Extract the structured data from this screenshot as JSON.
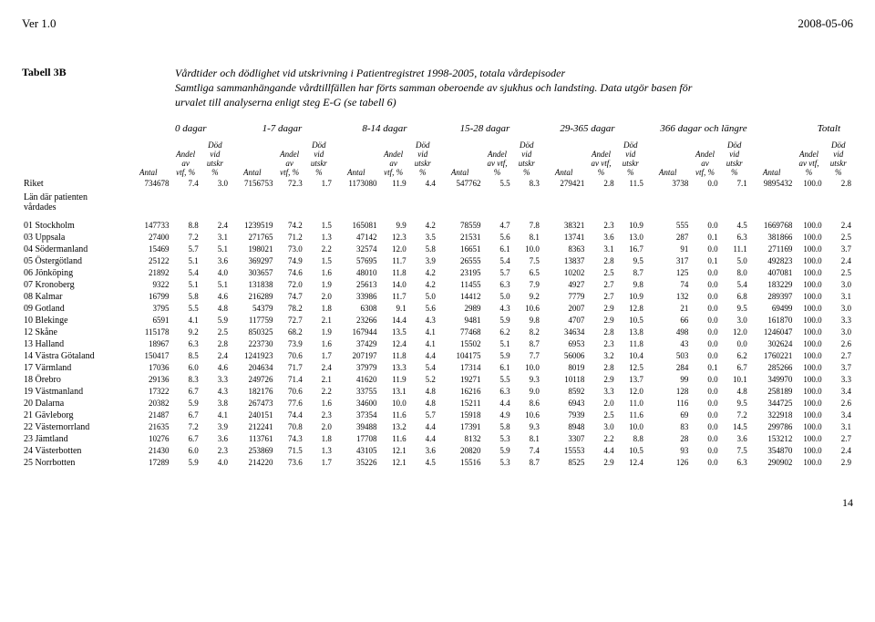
{
  "header": {
    "ver": "Ver 1.0",
    "date": "2008-05-06"
  },
  "tabell_label": "Tabell 3B",
  "title_lines": [
    "Vårdtider och dödlighet vid utskrivning i Patientregistret 1998-2005, totala vårdepisoder",
    "Samtliga sammanhängande vårdtillfällen har förts samman oberoende av sjukhus och landsting. Data utgör basen för",
    "urvalet till analyserna enligt steg E-G (se tabell 6)"
  ],
  "bucket_labels": [
    "0 dagar",
    "1-7 dagar",
    "8-14 dagar",
    "15-28 dagar",
    "29-365 dagar",
    "366 dagar och längre",
    "Totalt"
  ],
  "col_header": {
    "antal": "Antal",
    "andel": "Andel\nav\nvtf, %",
    "andel_vtf": "Andel\nav vtf,\n%",
    "dod": "Död\nvid\nutskr\n%"
  },
  "riket_label": "Riket",
  "lan_header": "Län där patienten\nvårdades",
  "pagenum": "14",
  "riket": [
    "734678",
    "7.4",
    "3.0",
    "7156753",
    "72.3",
    "1.7",
    "1173080",
    "11.9",
    "4.4",
    "547762",
    "5.5",
    "8.3",
    "279421",
    "2.8",
    "11.5",
    "3738",
    "0.0",
    "7.1",
    "9895432",
    "100.0",
    "2.8"
  ],
  "regions": [
    {
      "label": "01 Stockholm",
      "v": [
        "147733",
        "8.8",
        "2.4",
        "1239519",
        "74.2",
        "1.5",
        "165081",
        "9.9",
        "4.2",
        "78559",
        "4.7",
        "7.8",
        "38321",
        "2.3",
        "10.9",
        "555",
        "0.0",
        "4.5",
        "1669768",
        "100.0",
        "2.4"
      ]
    },
    {
      "label": "03 Uppsala",
      "v": [
        "27400",
        "7.2",
        "3.1",
        "271765",
        "71.2",
        "1.3",
        "47142",
        "12.3",
        "3.5",
        "21531",
        "5.6",
        "8.1",
        "13741",
        "3.6",
        "13.0",
        "287",
        "0.1",
        "6.3",
        "381866",
        "100.0",
        "2.5"
      ]
    },
    {
      "label": "04 Södermanland",
      "v": [
        "15469",
        "5.7",
        "5.1",
        "198021",
        "73.0",
        "2.2",
        "32574",
        "12.0",
        "5.8",
        "16651",
        "6.1",
        "10.0",
        "8363",
        "3.1",
        "16.7",
        "91",
        "0.0",
        "11.1",
        "271169",
        "100.0",
        "3.7"
      ]
    },
    {
      "label": "05 Östergötland",
      "v": [
        "25122",
        "5.1",
        "3.6",
        "369297",
        "74.9",
        "1.5",
        "57695",
        "11.7",
        "3.9",
        "26555",
        "5.4",
        "7.5",
        "13837",
        "2.8",
        "9.5",
        "317",
        "0.1",
        "5.0",
        "492823",
        "100.0",
        "2.4"
      ]
    },
    {
      "label": "06 Jönköping",
      "v": [
        "21892",
        "5.4",
        "4.0",
        "303657",
        "74.6",
        "1.6",
        "48010",
        "11.8",
        "4.2",
        "23195",
        "5.7",
        "6.5",
        "10202",
        "2.5",
        "8.7",
        "125",
        "0.0",
        "8.0",
        "407081",
        "100.0",
        "2.5"
      ]
    },
    {
      "label": "07 Kronoberg",
      "v": [
        "9322",
        "5.1",
        "5.1",
        "131838",
        "72.0",
        "1.9",
        "25613",
        "14.0",
        "4.2",
        "11455",
        "6.3",
        "7.9",
        "4927",
        "2.7",
        "9.8",
        "74",
        "0.0",
        "5.4",
        "183229",
        "100.0",
        "3.0"
      ]
    },
    {
      "label": "08 Kalmar",
      "v": [
        "16799",
        "5.8",
        "4.6",
        "216289",
        "74.7",
        "2.0",
        "33986",
        "11.7",
        "5.0",
        "14412",
        "5.0",
        "9.2",
        "7779",
        "2.7",
        "10.9",
        "132",
        "0.0",
        "6.8",
        "289397",
        "100.0",
        "3.1"
      ]
    },
    {
      "label": "09 Gotland",
      "v": [
        "3795",
        "5.5",
        "4.8",
        "54379",
        "78.2",
        "1.8",
        "6308",
        "9.1",
        "5.6",
        "2989",
        "4.3",
        "10.6",
        "2007",
        "2.9",
        "12.8",
        "21",
        "0.0",
        "9.5",
        "69499",
        "100.0",
        "3.0"
      ]
    },
    {
      "label": "10 Blekinge",
      "v": [
        "6591",
        "4.1",
        "5.9",
        "117759",
        "72.7",
        "2.1",
        "23266",
        "14.4",
        "4.3",
        "9481",
        "5.9",
        "9.8",
        "4707",
        "2.9",
        "10.5",
        "66",
        "0.0",
        "3.0",
        "161870",
        "100.0",
        "3.3"
      ]
    },
    {
      "label": "12 Skåne",
      "v": [
        "115178",
        "9.2",
        "2.5",
        "850325",
        "68.2",
        "1.9",
        "167944",
        "13.5",
        "4.1",
        "77468",
        "6.2",
        "8.2",
        "34634",
        "2.8",
        "13.8",
        "498",
        "0.0",
        "12.0",
        "1246047",
        "100.0",
        "3.0"
      ]
    },
    {
      "label": "13 Halland",
      "v": [
        "18967",
        "6.3",
        "2.8",
        "223730",
        "73.9",
        "1.6",
        "37429",
        "12.4",
        "4.1",
        "15502",
        "5.1",
        "8.7",
        "6953",
        "2.3",
        "11.8",
        "43",
        "0.0",
        "0.0",
        "302624",
        "100.0",
        "2.6"
      ]
    },
    {
      "label": "14 Västra Götaland",
      "v": [
        "150417",
        "8.5",
        "2.4",
        "1241923",
        "70.6",
        "1.7",
        "207197",
        "11.8",
        "4.4",
        "104175",
        "5.9",
        "7.7",
        "56006",
        "3.2",
        "10.4",
        "503",
        "0.0",
        "6.2",
        "1760221",
        "100.0",
        "2.7"
      ]
    },
    {
      "label": "17 Värmland",
      "v": [
        "17036",
        "6.0",
        "4.6",
        "204634",
        "71.7",
        "2.4",
        "37979",
        "13.3",
        "5.4",
        "17314",
        "6.1",
        "10.0",
        "8019",
        "2.8",
        "12.5",
        "284",
        "0.1",
        "6.7",
        "285266",
        "100.0",
        "3.7"
      ]
    },
    {
      "label": "18 Örebro",
      "v": [
        "29136",
        "8.3",
        "3.3",
        "249726",
        "71.4",
        "2.1",
        "41620",
        "11.9",
        "5.2",
        "19271",
        "5.5",
        "9.3",
        "10118",
        "2.9",
        "13.7",
        "99",
        "0.0",
        "10.1",
        "349970",
        "100.0",
        "3.3"
      ]
    },
    {
      "label": "19 Västmanland",
      "v": [
        "17322",
        "6.7",
        "4.3",
        "182176",
        "70.6",
        "2.2",
        "33755",
        "13.1",
        "4.8",
        "16216",
        "6.3",
        "9.0",
        "8592",
        "3.3",
        "12.0",
        "128",
        "0.0",
        "4.8",
        "258189",
        "100.0",
        "3.4"
      ]
    },
    {
      "label": "20 Dalarna",
      "v": [
        "20382",
        "5.9",
        "3.8",
        "267473",
        "77.6",
        "1.6",
        "34600",
        "10.0",
        "4.8",
        "15211",
        "4.4",
        "8.6",
        "6943",
        "2.0",
        "11.0",
        "116",
        "0.0",
        "9.5",
        "344725",
        "100.0",
        "2.6"
      ]
    },
    {
      "label": "21 Gävleborg",
      "v": [
        "21487",
        "6.7",
        "4.1",
        "240151",
        "74.4",
        "2.3",
        "37354",
        "11.6",
        "5.7",
        "15918",
        "4.9",
        "10.6",
        "7939",
        "2.5",
        "11.6",
        "69",
        "0.0",
        "7.2",
        "322918",
        "100.0",
        "3.4"
      ]
    },
    {
      "label": "22 Västernorrland",
      "v": [
        "21635",
        "7.2",
        "3.9",
        "212241",
        "70.8",
        "2.0",
        "39488",
        "13.2",
        "4.4",
        "17391",
        "5.8",
        "9.3",
        "8948",
        "3.0",
        "10.0",
        "83",
        "0.0",
        "14.5",
        "299786",
        "100.0",
        "3.1"
      ]
    },
    {
      "label": "23 Jämtland",
      "v": [
        "10276",
        "6.7",
        "3.6",
        "113761",
        "74.3",
        "1.8",
        "17708",
        "11.6",
        "4.4",
        "8132",
        "5.3",
        "8.1",
        "3307",
        "2.2",
        "8.8",
        "28",
        "0.0",
        "3.6",
        "153212",
        "100.0",
        "2.7"
      ]
    },
    {
      "label": "24 Västerbotten",
      "v": [
        "21430",
        "6.0",
        "2.3",
        "253869",
        "71.5",
        "1.3",
        "43105",
        "12.1",
        "3.6",
        "20820",
        "5.9",
        "7.4",
        "15553",
        "4.4",
        "10.5",
        "93",
        "0.0",
        "7.5",
        "354870",
        "100.0",
        "2.4"
      ]
    },
    {
      "label": "25 Norrbotten",
      "v": [
        "17289",
        "5.9",
        "4.0",
        "214220",
        "73.6",
        "1.7",
        "35226",
        "12.1",
        "4.5",
        "15516",
        "5.3",
        "8.7",
        "8525",
        "2.9",
        "12.4",
        "126",
        "0.0",
        "6.3",
        "290902",
        "100.0",
        "2.9"
      ]
    }
  ]
}
